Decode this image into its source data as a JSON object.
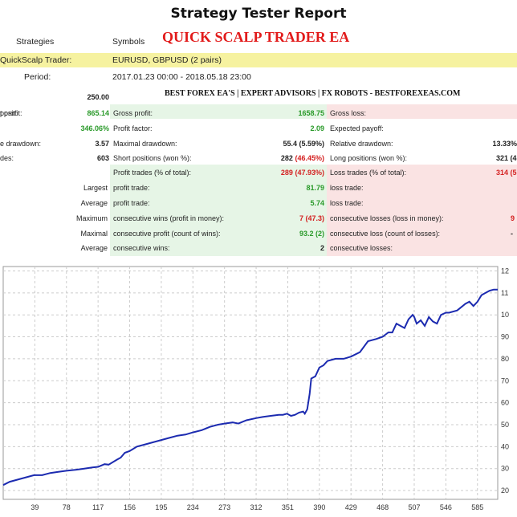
{
  "report": {
    "title": "Strategy Tester Report",
    "col_strategies": "Strategies",
    "col_symbols": "Symbols",
    "ea_name": "QUICK SCALP TRADER EA",
    "strategy_name": "QuickScalp Trader:",
    "symbols_value": "EURUSD, GBPUSD",
    "symbols_pairs": "(2 pairs)",
    "period_label": "Period:",
    "period_value": "2017.01.23 00:00 - 2018.05.18 23:00",
    "banner": "BEST FOREX EA'S | EXPERT ADVISORS | FX ROBOTS - BESTFOREXEAS.COM"
  },
  "left": [
    {
      "label": "posit:",
      "value": "250.00"
    },
    {
      "label": "t profit:",
      "value": "865.14"
    },
    {
      "label": "",
      "value": "346.06%"
    },
    {
      "label": "e drawdown:",
      "value": "3.57"
    },
    {
      "label": "des:",
      "value": "603"
    }
  ],
  "mid": [
    {
      "label": "Gross profit:",
      "value": "1658.75"
    },
    {
      "label": "Profit factor:",
      "value": "2.09"
    },
    {
      "label": "Maximal drawdown:",
      "value": "55.4 (5.59%)"
    },
    {
      "label": "Short positions (won %):",
      "value_main": "282",
      "value_pct": "(46.45%)"
    }
  ],
  "right": [
    {
      "label": "Gross loss:",
      "value": ""
    },
    {
      "label": "Expected payoff:",
      "value": ""
    },
    {
      "label": "Relative drawdown:",
      "value": "13.33%"
    },
    {
      "label": "Long positions (won %):",
      "value": "321 (4"
    }
  ],
  "trades": [
    {
      "prefix": "",
      "label": "Profit trades (% of total):",
      "value_main": "289",
      "value_pct": "(47.93%)",
      "loss_label": "Loss trades (% of total):",
      "loss_value": "314 (5"
    },
    {
      "prefix": "Largest",
      "label": "profit trade:",
      "value": "81.79",
      "loss_label": "loss trade:",
      "loss_value": ""
    },
    {
      "prefix": "Average",
      "label": "profit trade:",
      "value": "5.74",
      "loss_label": "loss trade:",
      "loss_value": ""
    },
    {
      "prefix": "Maximum",
      "label": "consecutive wins (profit in money):",
      "value": "7 (47.3)",
      "loss_label": "consecutive losses (loss in money):",
      "loss_value": "9"
    },
    {
      "prefix": "Maximal",
      "label": "consecutive profit (count of wins):",
      "value": "93.2 (2)",
      "loss_label": "consecutive loss (count of losses):",
      "loss_value": "-"
    },
    {
      "prefix": "Average",
      "label": "consecutive wins:",
      "value": "2",
      "loss_label": "consecutive losses:",
      "loss_value": ""
    }
  ],
  "colors": {
    "line": "#1c2bb0",
    "grid": "#cccccc",
    "green": "#2a9a2a",
    "red": "#d42020"
  },
  "chart_data": {
    "type": "line",
    "title": "",
    "xlabel": "",
    "ylabel": "",
    "x_ticks": [
      "39",
      "78",
      "117",
      "156",
      "195",
      "234",
      "273",
      "312",
      "351",
      "390",
      "429",
      "468",
      "507",
      "546",
      "585"
    ],
    "y_ticks_visible": [
      "12",
      "11",
      "10",
      "90",
      "80",
      "70",
      "60",
      "50",
      "40",
      "30",
      "20"
    ],
    "xlim": [
      0,
      610
    ],
    "ylim": [
      160,
      1220
    ],
    "grid": true,
    "series": [
      {
        "x": [
          0,
          8,
          18,
          28,
          38,
          48,
          58,
          68,
          78,
          90,
          100,
          110,
          117,
          125,
          130,
          140,
          145,
          150,
          156,
          165,
          175,
          185,
          195,
          205,
          215,
          225,
          234,
          245,
          255,
          265,
          273,
          283,
          290,
          300,
          312,
          320,
          330,
          340,
          345,
          350,
          355,
          360,
          365,
          370,
          372,
          375,
          378,
          380,
          385,
          390,
          395,
          400,
          410,
          420,
          429,
          440,
          450,
          460,
          468,
          475,
          480,
          485,
          490,
          495,
          500,
          505,
          507,
          510,
          515,
          520,
          525,
          530,
          535,
          540,
          546,
          550,
          560,
          570,
          575,
          580,
          585,
          590,
          595,
          600,
          605,
          610
        ],
        "y": [
          225,
          240,
          250,
          260,
          270,
          270,
          280,
          285,
          290,
          295,
          300,
          305,
          308,
          320,
          318,
          340,
          350,
          372,
          380,
          400,
          410,
          420,
          430,
          440,
          450,
          455,
          465,
          475,
          490,
          500,
          505,
          510,
          505,
          520,
          530,
          535,
          540,
          545,
          545,
          550,
          540,
          545,
          555,
          560,
          550,
          570,
          640,
          710,
          720,
          760,
          770,
          790,
          800,
          800,
          810,
          830,
          880,
          890,
          900,
          920,
          920,
          960,
          950,
          940,
          980,
          1000,
          990,
          960,
          975,
          950,
          990,
          970,
          960,
          1000,
          1010,
          1010,
          1020,
          1050,
          1060,
          1040,
          1060,
          1090,
          1100,
          1110,
          1115,
          1115
        ]
      }
    ]
  }
}
